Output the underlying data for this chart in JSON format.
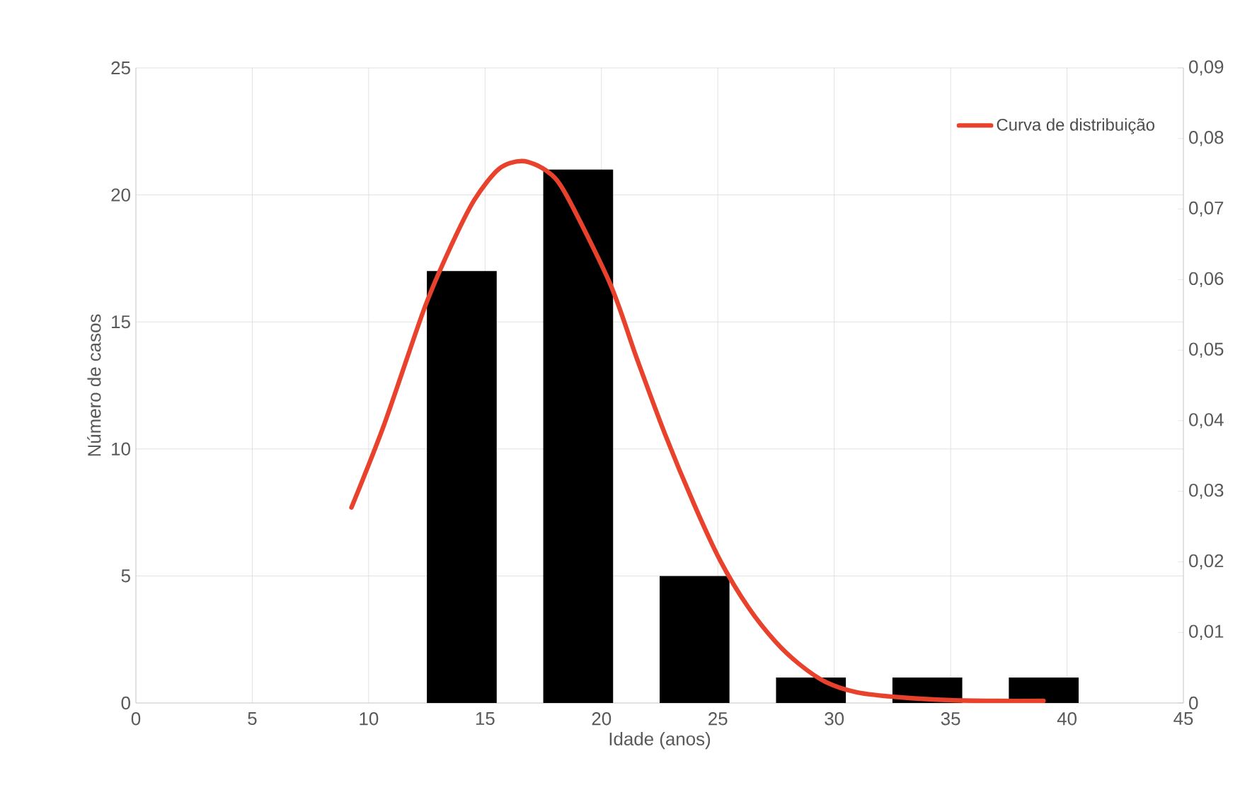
{
  "chart_data": {
    "type": "bar",
    "xlabel": "Idade (anos)",
    "ylabel": "Número de casos",
    "x": [
      14,
      19,
      24,
      29,
      34,
      39
    ],
    "xlim": [
      0,
      45
    ],
    "xticks": [
      0,
      5,
      10,
      15,
      20,
      25,
      30,
      35,
      40,
      45
    ],
    "ylim": [
      0,
      25
    ],
    "yticks": [
      0,
      5,
      10,
      15,
      20,
      25
    ],
    "y2lim": [
      0,
      0.09
    ],
    "y2ticks": [
      {
        "value": 0,
        "label": "0"
      },
      {
        "value": 0.01,
        "label": "0,01"
      },
      {
        "value": 0.02,
        "label": "0,02"
      },
      {
        "value": 0.03,
        "label": "0,03"
      },
      {
        "value": 0.04,
        "label": "0,04"
      },
      {
        "value": 0.05,
        "label": "0,05"
      },
      {
        "value": 0.06,
        "label": "0,06"
      },
      {
        "value": 0.07,
        "label": "0,07"
      },
      {
        "value": 0.08,
        "label": "0,08"
      },
      {
        "value": 0.09,
        "label": "0,09"
      }
    ],
    "grid": true,
    "legend": "top right",
    "series": [
      {
        "color": "#000000",
        "values": [
          17,
          21,
          5,
          1,
          1,
          1
        ]
      },
      {
        "type": "line",
        "name": "Curva de distribuição",
        "axis": "y2",
        "color": "#e8412c",
        "x": [
          9.26,
          10.67,
          12.39,
          13.5,
          14.54,
          15.6,
          16.6,
          17.6,
          18.42,
          20.36,
          21.5,
          22.73,
          24,
          25.1,
          26.3,
          27.47,
          28.5,
          29.62,
          31,
          32.85,
          35,
          37,
          38.99
        ],
        "values": [
          0.0277,
          0.0395,
          0.0559,
          0.0645,
          0.0713,
          0.0757,
          0.0768,
          0.0755,
          0.0724,
          0.0595,
          0.049,
          0.0381,
          0.028,
          0.0202,
          0.0136,
          0.0087,
          0.0055,
          0.003,
          0.0015,
          0.0008,
          0.0004,
          0.0003,
          0.0003
        ]
      }
    ]
  }
}
